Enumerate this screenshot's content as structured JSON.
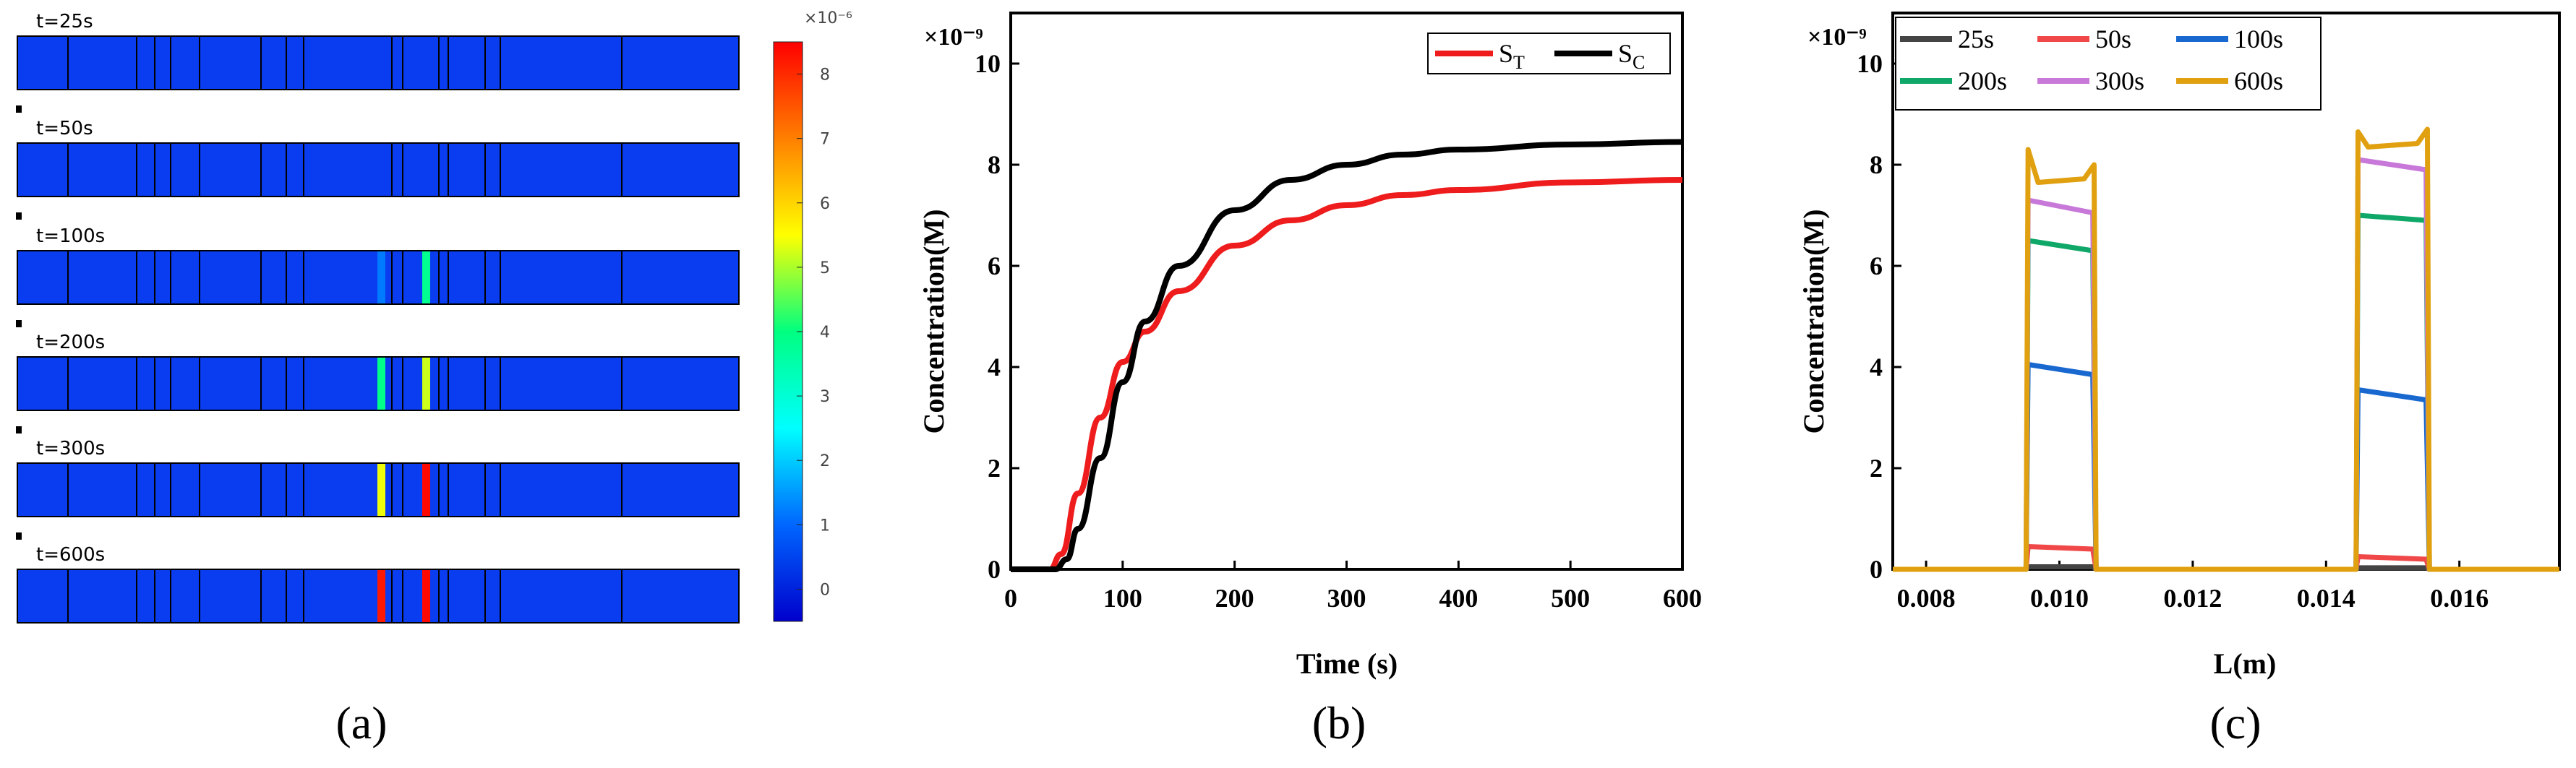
{
  "panel_a": {
    "caption": "(a)",
    "snapshot_labels": [
      "t=25s",
      "t=50s",
      "t=100s",
      "t=200s",
      "t=300s",
      "t=600s"
    ],
    "colorbar": {
      "exponent_label": "×10⁻⁶",
      "ticks": [
        "8",
        "7",
        "6",
        "5",
        "4",
        "3",
        "2",
        "1",
        "0"
      ],
      "range": [
        -0.5,
        8.5
      ],
      "gradient_colors": [
        "#ff0000",
        "#ff7f00",
        "#ffff00",
        "#00ff80",
        "#00ffff",
        "#0066ff",
        "#0000cc"
      ]
    },
    "colors": {
      "channel": "#0a3cf0",
      "outline": "#000000"
    },
    "active_bands": [
      {
        "left_value": 1.2,
        "right_value": 3.8
      },
      {
        "left_value": 3.9,
        "right_value": 5.2
      },
      {
        "left_value": 5.4,
        "right_value": 8.4
      },
      {
        "left_value": 8.2,
        "right_value": 8.4
      }
    ]
  },
  "chart_data": [
    {
      "id": "b",
      "type": "line",
      "caption": "(b)",
      "xlabel": "Time (s)",
      "ylabel": "Concentration(M)",
      "y_multiplier_label": "×10⁻⁹",
      "xlim": [
        0,
        600
      ],
      "ylim": [
        0,
        11
      ],
      "xticks": [
        "0",
        "100",
        "200",
        "300",
        "400",
        "500",
        "600"
      ],
      "yticks": [
        "0",
        "2",
        "4",
        "6",
        "8",
        "10"
      ],
      "series": [
        {
          "name": "S_T",
          "legend_main": "S",
          "legend_sub": "T",
          "color": "#ee1c1c",
          "x": [
            0,
            35,
            45,
            60,
            80,
            100,
            120,
            150,
            200,
            250,
            300,
            350,
            400,
            500,
            600
          ],
          "y": [
            0,
            0,
            0.3,
            1.5,
            3.0,
            4.1,
            4.7,
            5.5,
            6.4,
            6.9,
            7.2,
            7.4,
            7.5,
            7.65,
            7.7
          ]
        },
        {
          "name": "S_C",
          "legend_main": "S",
          "legend_sub": "C",
          "color": "#000000",
          "x": [
            0,
            40,
            50,
            60,
            80,
            100,
            120,
            150,
            200,
            250,
            300,
            350,
            400,
            500,
            600
          ],
          "y": [
            0,
            0,
            0.2,
            0.8,
            2.2,
            3.7,
            4.9,
            6.0,
            7.1,
            7.7,
            8.0,
            8.2,
            8.3,
            8.4,
            8.45
          ]
        }
      ]
    },
    {
      "id": "c",
      "type": "line",
      "caption": "(c)",
      "xlabel": "L(m)",
      "ylabel": "Concentration(M)",
      "y_multiplier_label": "×10⁻⁹",
      "xlim": [
        0.0075,
        0.0175
      ],
      "ylim": [
        0,
        11
      ],
      "xticks": [
        "0.008",
        "0.010",
        "0.012",
        "0.014",
        "0.016"
      ],
      "xtick_values": [
        0.008,
        0.01,
        0.012,
        0.014,
        0.016
      ],
      "yticks": [
        "0",
        "2",
        "4",
        "6",
        "8",
        "10"
      ],
      "series": [
        {
          "name": "25s",
          "color": "#444444",
          "left": [
            0.05,
            0.05
          ],
          "right": [
            0.03,
            0.03
          ]
        },
        {
          "name": "50s",
          "color": "#f04848",
          "left": [
            0.45,
            0.4
          ],
          "right": [
            0.25,
            0.2
          ]
        },
        {
          "name": "100s",
          "color": "#1868d0",
          "left": [
            4.05,
            3.85
          ],
          "right": [
            3.55,
            3.35
          ]
        },
        {
          "name": "200s",
          "color": "#10a868",
          "left": [
            6.5,
            6.3
          ],
          "right": [
            7.0,
            6.9
          ]
        },
        {
          "name": "300s",
          "color": "#c878d8",
          "left": [
            7.3,
            7.05
          ],
          "right": [
            8.1,
            7.9
          ]
        },
        {
          "name": "600s",
          "color": "#e0a010",
          "left": [
            8.3,
            7.65,
            8.0
          ],
          "right": [
            8.65,
            8.35,
            8.7
          ]
        }
      ],
      "regions": [
        {
          "start": 0.0095,
          "end": 0.01055
        },
        {
          "start": 0.01445,
          "end": 0.01555
        }
      ]
    }
  ]
}
